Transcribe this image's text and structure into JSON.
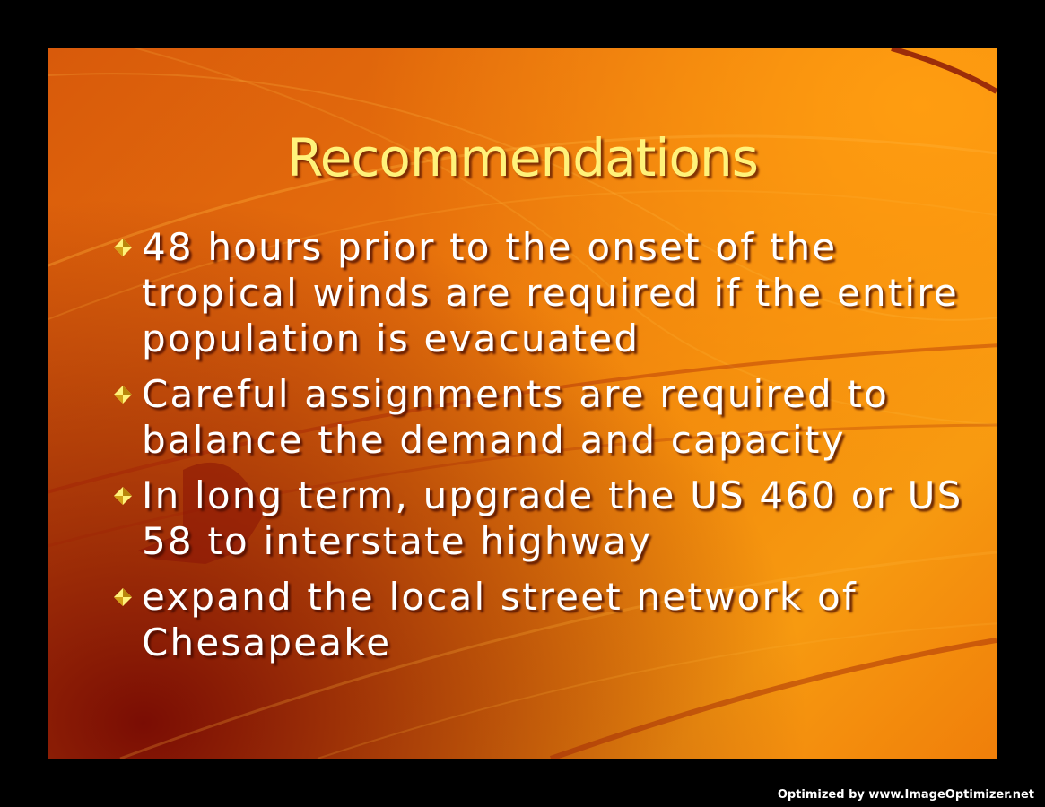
{
  "slide": {
    "title": "Recommendations",
    "bullets": [
      "48 hours prior to the onset of the tropical winds are required if the entire population is evacuated",
      "Careful assignments are required to balance the demand and capacity",
      "In long term, upgrade the US 460 or US 58 to interstate highway",
      "expand the local street network of Chesapeake"
    ],
    "bullet_icon": "diamond-bullet-icon",
    "colors": {
      "title": "#fff27a",
      "text": "#ffffff",
      "background_light": "#f79a10",
      "background_dark": "#7a0d04"
    }
  },
  "watermark": {
    "text": "Optimized by www.ImageOptimizer.net"
  }
}
